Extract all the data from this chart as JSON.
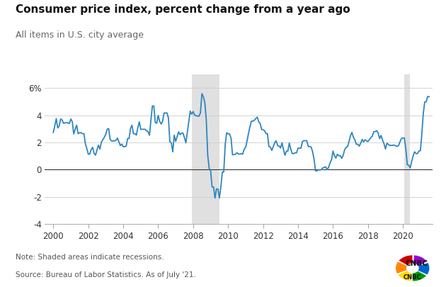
{
  "title": "Consumer price index, percent change from a year ago",
  "subtitle": "All items in U.S. city average",
  "note": "Note: Shaded areas indicate recessions.",
  "source": "Source: Bureau of Labor Statistics. As of July '21.",
  "line_color": "#2d86c0",
  "line_width": 1.3,
  "background_color": "#ffffff",
  "recession_color": "#e0e0e0",
  "recessions": [
    [
      2007.917,
      2009.5
    ]
  ],
  "recession2": [
    2020.083,
    2020.417
  ],
  "ylim": [
    -4,
    7
  ],
  "yticks": [
    -4,
    -2,
    0,
    2,
    4,
    6
  ],
  "ytick_labels": [
    "-4",
    "-2",
    "0",
    "2",
    "4",
    "6%"
  ],
  "xlim": [
    1999.5,
    2021.7
  ],
  "xticks": [
    2000,
    2002,
    2004,
    2006,
    2008,
    2010,
    2012,
    2014,
    2016,
    2018,
    2020
  ],
  "data": {
    "dates": [
      2000.0,
      2000.083,
      2000.167,
      2000.25,
      2000.333,
      2000.417,
      2000.5,
      2000.583,
      2000.667,
      2000.75,
      2000.833,
      2000.917,
      2001.0,
      2001.083,
      2001.167,
      2001.25,
      2001.333,
      2001.417,
      2001.5,
      2001.583,
      2001.667,
      2001.75,
      2001.833,
      2001.917,
      2002.0,
      2002.083,
      2002.167,
      2002.25,
      2002.333,
      2002.417,
      2002.5,
      2002.583,
      2002.667,
      2002.75,
      2002.833,
      2002.917,
      2003.0,
      2003.083,
      2003.167,
      2003.25,
      2003.333,
      2003.417,
      2003.5,
      2003.583,
      2003.667,
      2003.75,
      2003.833,
      2003.917,
      2004.0,
      2004.083,
      2004.167,
      2004.25,
      2004.333,
      2004.417,
      2004.5,
      2004.583,
      2004.667,
      2004.75,
      2004.833,
      2004.917,
      2005.0,
      2005.083,
      2005.167,
      2005.25,
      2005.333,
      2005.417,
      2005.5,
      2005.583,
      2005.667,
      2005.75,
      2005.833,
      2005.917,
      2006.0,
      2006.083,
      2006.167,
      2006.25,
      2006.333,
      2006.417,
      2006.5,
      2006.583,
      2006.667,
      2006.75,
      2006.833,
      2006.917,
      2007.0,
      2007.083,
      2007.167,
      2007.25,
      2007.333,
      2007.417,
      2007.5,
      2007.583,
      2007.667,
      2007.75,
      2007.833,
      2007.917,
      2008.0,
      2008.083,
      2008.167,
      2008.25,
      2008.333,
      2008.417,
      2008.5,
      2008.583,
      2008.667,
      2008.75,
      2008.833,
      2008.917,
      2009.0,
      2009.083,
      2009.167,
      2009.25,
      2009.333,
      2009.417,
      2009.5,
      2009.583,
      2009.667,
      2009.75,
      2009.833,
      2009.917,
      2010.0,
      2010.083,
      2010.167,
      2010.25,
      2010.333,
      2010.417,
      2010.5,
      2010.583,
      2010.667,
      2010.75,
      2010.833,
      2010.917,
      2011.0,
      2011.083,
      2011.167,
      2011.25,
      2011.333,
      2011.417,
      2011.5,
      2011.583,
      2011.667,
      2011.75,
      2011.833,
      2011.917,
      2012.0,
      2012.083,
      2012.167,
      2012.25,
      2012.333,
      2012.417,
      2012.5,
      2012.583,
      2012.667,
      2012.75,
      2012.833,
      2012.917,
      2013.0,
      2013.083,
      2013.167,
      2013.25,
      2013.333,
      2013.417,
      2013.5,
      2013.583,
      2013.667,
      2013.75,
      2013.833,
      2013.917,
      2014.0,
      2014.083,
      2014.167,
      2014.25,
      2014.333,
      2014.417,
      2014.5,
      2014.583,
      2014.667,
      2014.75,
      2014.833,
      2014.917,
      2015.0,
      2015.083,
      2015.167,
      2015.25,
      2015.333,
      2015.417,
      2015.5,
      2015.583,
      2015.667,
      2015.75,
      2015.833,
      2015.917,
      2016.0,
      2016.083,
      2016.167,
      2016.25,
      2016.333,
      2016.417,
      2016.5,
      2016.583,
      2016.667,
      2016.75,
      2016.833,
      2016.917,
      2017.0,
      2017.083,
      2017.167,
      2017.25,
      2017.333,
      2017.417,
      2017.5,
      2017.583,
      2017.667,
      2017.75,
      2017.833,
      2017.917,
      2018.0,
      2018.083,
      2018.167,
      2018.25,
      2018.333,
      2018.417,
      2018.5,
      2018.583,
      2018.667,
      2018.75,
      2018.833,
      2018.917,
      2019.0,
      2019.083,
      2019.167,
      2019.25,
      2019.333,
      2019.417,
      2019.5,
      2019.583,
      2019.667,
      2019.75,
      2019.833,
      2019.917,
      2020.0,
      2020.083,
      2020.167,
      2020.25,
      2020.333,
      2020.417,
      2020.5,
      2020.583,
      2020.667,
      2020.75,
      2020.833,
      2020.917,
      2021.0,
      2021.083,
      2021.167,
      2021.25,
      2021.333,
      2021.417,
      2021.5
    ],
    "values": [
      2.74,
      3.22,
      3.76,
      3.07,
      3.19,
      3.73,
      3.66,
      3.41,
      3.45,
      3.45,
      3.45,
      3.39,
      3.73,
      3.53,
      2.63,
      2.98,
      3.27,
      2.65,
      2.72,
      2.72,
      2.65,
      2.65,
      1.9,
      1.55,
      1.14,
      1.14,
      1.48,
      1.64,
      1.18,
      1.07,
      1.47,
      1.8,
      1.51,
      2.03,
      2.2,
      2.38,
      2.6,
      2.98,
      3.02,
      2.22,
      2.11,
      2.11,
      2.11,
      2.16,
      2.32,
      2.04,
      1.77,
      1.88,
      1.69,
      1.69,
      1.74,
      2.29,
      2.29,
      3.05,
      3.27,
      2.65,
      2.65,
      2.54,
      3.09,
      3.52,
      2.97,
      2.97,
      2.97,
      2.97,
      2.86,
      2.8,
      2.53,
      3.64,
      4.69,
      4.69,
      3.46,
      3.42,
      3.99,
      3.55,
      3.36,
      3.55,
      4.17,
      4.17,
      4.18,
      3.82,
      2.06,
      1.97,
      1.31,
      2.54,
      2.08,
      2.42,
      2.78,
      2.57,
      2.69,
      2.69,
      2.36,
      1.97,
      2.76,
      3.54,
      4.31,
      4.08,
      4.28,
      4.01,
      3.98,
      3.94,
      3.94,
      4.18,
      5.6,
      5.37,
      4.94,
      3.66,
      1.07,
      0.09,
      -0.09,
      -1.28,
      -1.28,
      -2.1,
      -1.43,
      -1.43,
      -2.1,
      -1.29,
      -0.18,
      -0.18,
      1.84,
      2.72,
      2.63,
      2.63,
      2.31,
      1.1,
      1.1,
      1.13,
      1.24,
      1.15,
      1.14,
      1.17,
      1.14,
      1.5,
      1.63,
      2.11,
      2.68,
      3.16,
      3.57,
      3.57,
      3.63,
      3.77,
      3.87,
      3.53,
      3.39,
      2.96,
      2.93,
      2.87,
      2.65,
      2.65,
      1.7,
      1.66,
      1.41,
      1.69,
      1.99,
      2.12,
      1.76,
      1.74,
      1.59,
      1.98,
      1.47,
      1.06,
      1.36,
      1.36,
      1.96,
      1.52,
      1.18,
      1.18,
      1.24,
      1.24,
      1.58,
      1.58,
      1.58,
      2.06,
      2.13,
      2.13,
      2.13,
      1.7,
      1.7,
      1.66,
      1.32,
      0.76,
      -0.09,
      -0.09,
      0.0,
      -0.04,
      0.01,
      0.12,
      0.17,
      0.2,
      0.0,
      0.17,
      0.5,
      0.73,
      1.37,
      1.02,
      0.85,
      1.13,
      1.02,
      1.02,
      0.83,
      1.06,
      1.46,
      1.64,
      1.69,
      2.07,
      2.5,
      2.74,
      2.38,
      2.2,
      1.87,
      1.87,
      1.73,
      1.94,
      2.23,
      2.04,
      2.2,
      2.11,
      2.07,
      2.21,
      2.36,
      2.46,
      2.8,
      2.8,
      2.87,
      2.7,
      2.28,
      2.52,
      2.18,
      1.91,
      1.52,
      1.94,
      1.86,
      1.77,
      1.79,
      1.79,
      1.81,
      1.75,
      1.71,
      1.77,
      2.05,
      2.29,
      2.33,
      2.33,
      1.54,
      0.35,
      0.33,
      0.12,
      0.6,
      1.0,
      1.31,
      1.18,
      1.18,
      1.36,
      1.4,
      2.62,
      4.16,
      4.99,
      5.0,
      5.39,
      5.37
    ]
  }
}
